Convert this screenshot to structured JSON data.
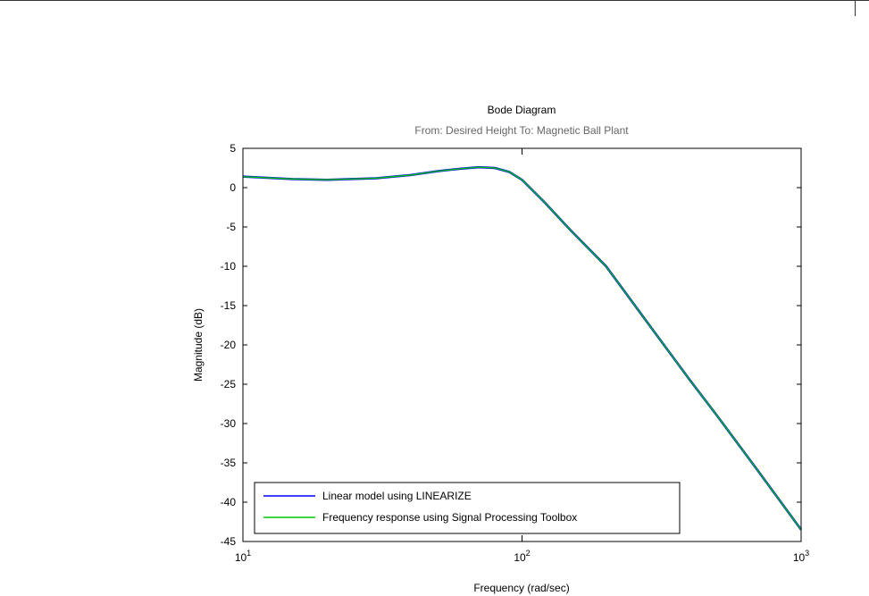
{
  "chart_data": {
    "type": "line",
    "title": "Bode Diagram",
    "subtitle": "From: Desired Height  To: Magnetic Ball Plant",
    "x_label": "Frequency  (rad/sec)",
    "y_label": "Magnitude (dB)",
    "x_scale": "log",
    "x": [
      10,
      15,
      20,
      30,
      40,
      50,
      60,
      70,
      80,
      90,
      100,
      120,
      150,
      200,
      300,
      400,
      500,
      700,
      1000
    ],
    "series": [
      {
        "name": "Linear model using LINEARIZE",
        "color": "#0000ff",
        "values": [
          1.4,
          1.1,
          1.0,
          1.2,
          1.6,
          2.1,
          2.4,
          2.6,
          2.5,
          2.0,
          1.0,
          -1.8,
          -5.5,
          -10,
          -18.5,
          -24.5,
          -29,
          -36,
          -43.5
        ]
      },
      {
        "name": "Frequency response using Signal Processing Toolbox",
        "color": "#00c800",
        "values": [
          1.4,
          1.1,
          1.0,
          1.2,
          1.6,
          2.1,
          2.4,
          2.6,
          2.5,
          2.0,
          1.0,
          -1.8,
          -5.5,
          -10,
          -18.5,
          -24.5,
          -29,
          -36,
          -43.5
        ]
      }
    ],
    "xlim": [
      10,
      1000
    ],
    "xticks": [
      {
        "value": 10,
        "label": "10^1"
      },
      {
        "value": 100,
        "label": "10^2"
      },
      {
        "value": 1000,
        "label": "10^3"
      }
    ],
    "ylim": [
      -45,
      5
    ],
    "yticks": [
      -45,
      -40,
      -35,
      -30,
      -25,
      -20,
      -15,
      -10,
      -5,
      0,
      5
    ],
    "legend": "lower left"
  }
}
